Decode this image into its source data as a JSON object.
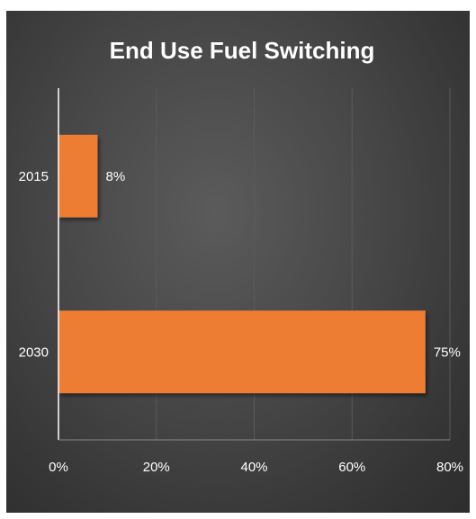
{
  "chart_data": {
    "type": "bar",
    "orientation": "horizontal",
    "title": "End Use Fuel Switching",
    "categories": [
      "2015",
      "2030"
    ],
    "values": [
      8,
      75
    ],
    "data_labels": [
      "8%",
      "75%"
    ],
    "xlabel": "",
    "ylabel": "",
    "xlim": [
      0,
      80
    ],
    "x_ticks": [
      0,
      20,
      40,
      60,
      80
    ],
    "x_tick_labels": [
      "0%",
      "20%",
      "40%",
      "60%",
      "80%"
    ],
    "grid": "vertical",
    "legend": "none",
    "colors": {
      "bar": "#ED7D31",
      "background": "#474747",
      "text": "#FFFFFF",
      "gridline": "#5a5a5a"
    }
  }
}
